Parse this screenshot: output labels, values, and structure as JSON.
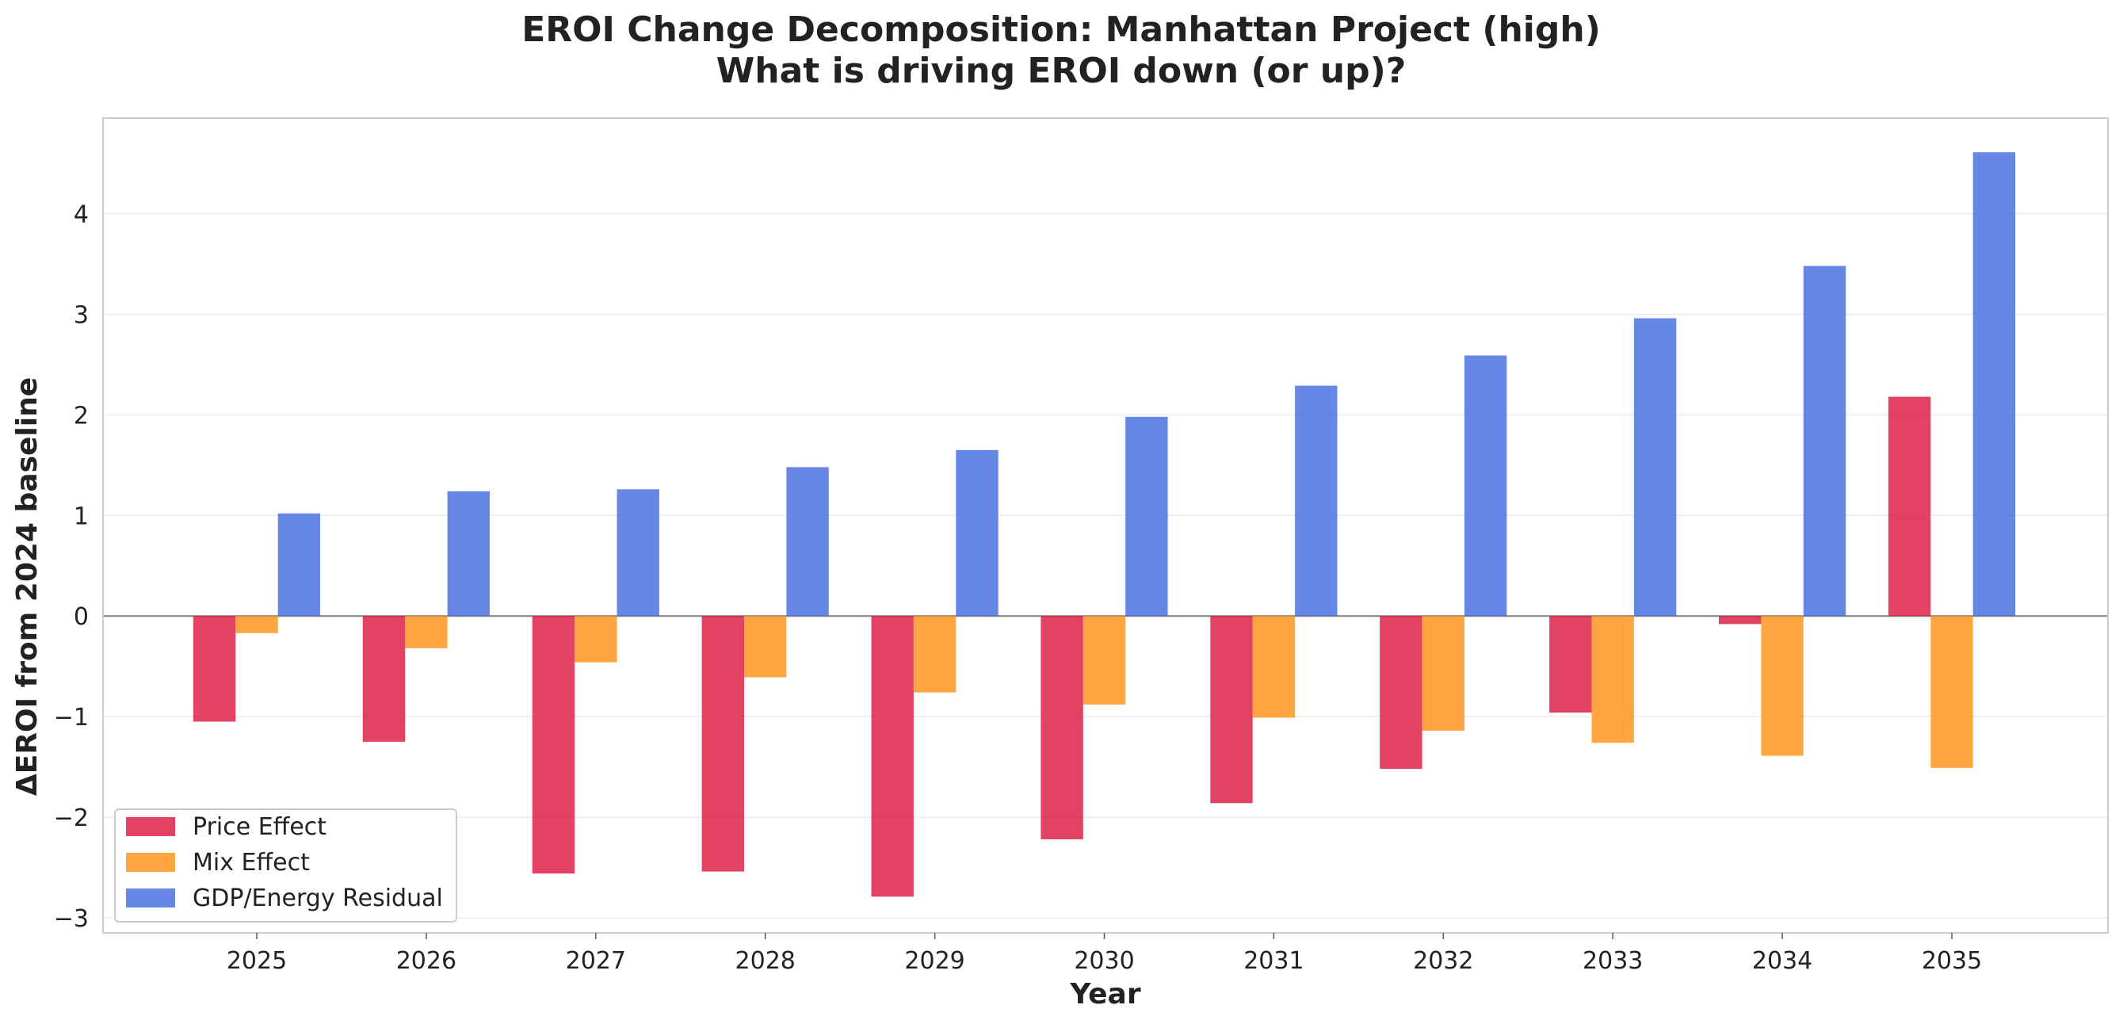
{
  "chart_data": {
    "type": "bar",
    "title": "EROI Change Decomposition: Manhattan Project (high)",
    "subtitle": "What is driving EROI down (or up)?",
    "xlabel": "Year",
    "ylabel": "ΔEROI from 2024 baseline",
    "categories": [
      "2025",
      "2026",
      "2027",
      "2028",
      "2029",
      "2030",
      "2031",
      "2032",
      "2033",
      "2034",
      "2035"
    ],
    "ylim": [
      -3.15,
      4.95
    ],
    "yticks": [
      -3,
      -2,
      -1,
      0,
      1,
      2,
      3,
      4
    ],
    "ytick_labels": [
      "−3",
      "−2",
      "−1",
      "0",
      "1",
      "2",
      "3",
      "4"
    ],
    "grid": true,
    "legend_position": "lower-left",
    "series": [
      {
        "name": "Price Effect",
        "color": "#dc143c",
        "values": [
          -1.05,
          -1.25,
          -2.56,
          -2.54,
          -2.79,
          -2.22,
          -1.86,
          -1.52,
          -0.96,
          -0.08,
          2.18
        ]
      },
      {
        "name": "Mix Effect",
        "color": "#ff9010",
        "values": [
          -0.17,
          -0.32,
          -0.46,
          -0.61,
          -0.76,
          -0.88,
          -1.01,
          -1.14,
          -1.26,
          -1.39,
          -1.51
        ]
      },
      {
        "name": "GDP/Energy Residual",
        "color": "#4169e1",
        "values": [
          1.02,
          1.24,
          1.26,
          1.48,
          1.65,
          1.98,
          2.29,
          2.59,
          2.96,
          3.48,
          4.61
        ]
      }
    ]
  }
}
